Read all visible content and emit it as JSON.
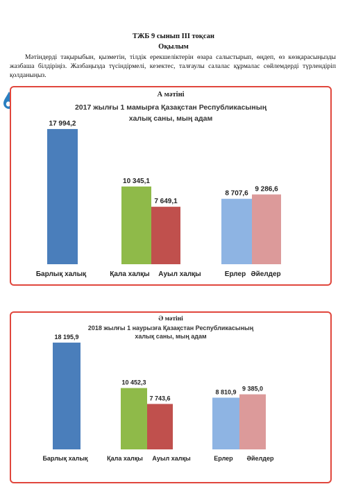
{
  "document": {
    "title": "ТЖБ 9 сынып ІІІ тоқсан",
    "subtitle": "Оқылым",
    "instruction": "Мәтіндерді тақырыбын, қызметін, тілдік ерекшеліктерін өзара салыстырып, өңдеп, өз көзқарасыңызды жазбаша білдіріңіз. Жазбаңызда түсіндірмелі, кезектес, талғаулы салалас құрмалас сөйлемдерді түрлендіріп қолданыңыз."
  },
  "icons": {
    "drop": "water-drop-icon"
  },
  "colors": {
    "panel_border": "#e0463c",
    "total": "#4a7ebb",
    "city": "#8fba49",
    "village": "#c0504d",
    "men": "#8eb4e3",
    "women": "#dc9a9a",
    "drop": "#2a7fc1"
  },
  "chart_data": [
    {
      "type": "bar",
      "panel_label": "А мәтіні",
      "title": "2017 жылғы 1 мамырға Қазақстан  Республикасының",
      "subtitle": "халық саны, мың адам",
      "categories": [
        "Барлық халық",
        "Қала халқы",
        "Ауыл халқы",
        "Ерлер",
        "Әйелдер"
      ],
      "values": [
        17994.2,
        10345.1,
        7649.1,
        8707.6,
        9286.6
      ],
      "value_labels": [
        "17 994,2",
        "10 345,1",
        "7 649,1",
        "8 707,6",
        "9 286,6"
      ],
      "xlabel": "",
      "ylabel": "",
      "ylim": [
        0,
        18000
      ],
      "grid": false,
      "legend": "none"
    },
    {
      "type": "bar",
      "panel_label": "Ә мәтіні",
      "title": "2018 жылғы 1 наурызға Қазақстан  Республикасының",
      "subtitle": "халық саны,  мың адам",
      "categories": [
        "Барлық халық",
        "Қала халқы",
        "Ауыл халқы",
        "Ерлер",
        "Әйелдер"
      ],
      "values": [
        18195.9,
        10452.3,
        7743.6,
        8810.9,
        9385.0
      ],
      "value_labels": [
        "18 195,9",
        "10 452,3",
        "7 743,6",
        "8 810,9",
        "9 385,0"
      ],
      "xlabel": "",
      "ylabel": "",
      "ylim": [
        0,
        18200
      ],
      "grid": false,
      "legend": "none"
    }
  ]
}
